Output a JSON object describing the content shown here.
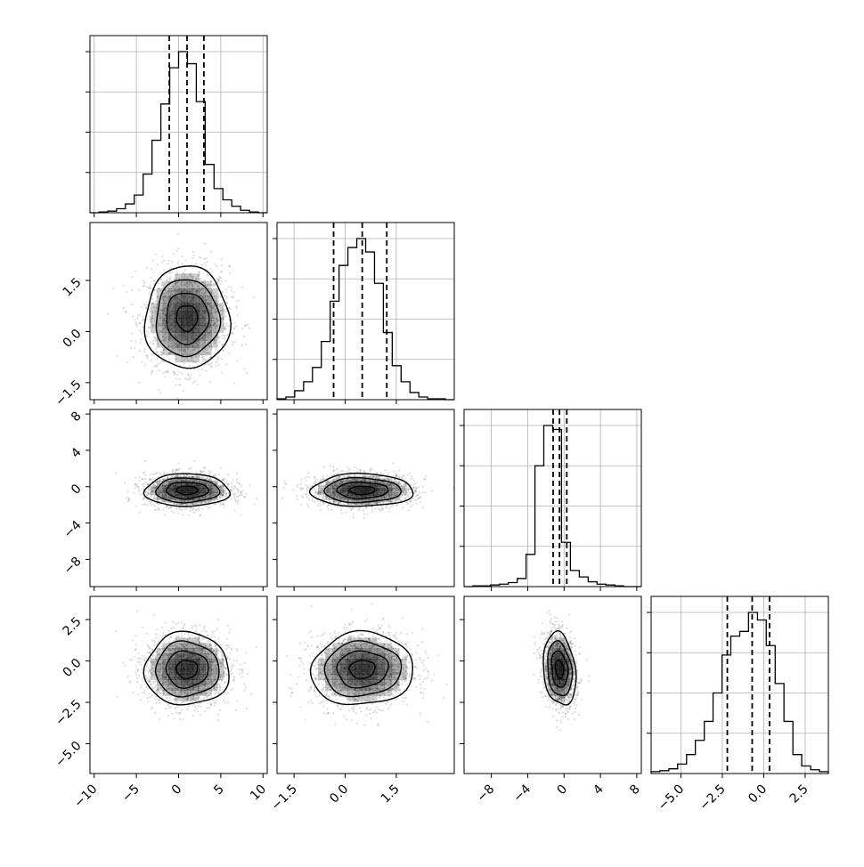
{
  "chart_data": {
    "type": "corner",
    "title": "",
    "variables": [
      {
        "ticks": [
          -10,
          -5,
          0,
          5,
          10
        ],
        "tick_labels": [
          "−10",
          "−5",
          "0",
          "5",
          "10"
        ],
        "range": [
          -10.5,
          10.5
        ]
      },
      {
        "ticks": [
          -1.5,
          0.0,
          1.5
        ],
        "tick_labels": [
          "−1.5",
          "0.0",
          "1.5"
        ],
        "range": [
          -2.0,
          3.2
        ]
      },
      {
        "ticks": [
          -8,
          -4,
          0,
          4,
          8
        ],
        "tick_labels": [
          "−8",
          "−4",
          "0",
          "4",
          "8"
        ],
        "range": [
          -11.0,
          8.5
        ]
      },
      {
        "ticks": [
          -5.0,
          -2.5,
          0.0,
          2.5
        ],
        "tick_labels": [
          "−5.0",
          "−2.5",
          "0.0",
          "2.5"
        ],
        "range": [
          -6.8,
          3.9
        ]
      }
    ],
    "histograms": [
      {
        "edges": [
          -10.5,
          -9.45,
          -8.4,
          -7.35,
          -6.3,
          -5.25,
          -4.2,
          -3.15,
          -2.1,
          -1.05,
          0,
          1.05,
          2.1,
          3.15,
          4.2,
          5.25,
          6.3,
          7.35,
          8.4,
          9.45,
          10.5
        ],
        "counts": [
          0,
          1,
          2,
          5,
          11,
          22,
          48,
          90,
          135,
          180,
          200,
          185,
          138,
          60,
          30,
          16,
          8,
          3,
          1,
          0
        ],
        "quantiles": [
          -1.1,
          1.0,
          3.0
        ]
      },
      {
        "edges": [
          -2.0,
          -1.74,
          -1.48,
          -1.22,
          -0.96,
          -0.7,
          -0.44,
          -0.18,
          0.08,
          0.34,
          0.6,
          0.86,
          1.12,
          1.38,
          1.64,
          1.9,
          2.16,
          2.42,
          2.68,
          2.94,
          3.2
        ],
        "counts": [
          1,
          3,
          10,
          20,
          36,
          65,
          110,
          150,
          170,
          180,
          165,
          130,
          75,
          38,
          20,
          8,
          3,
          1,
          1,
          0
        ],
        "quantiles": [
          -0.34,
          0.5,
          1.22
        ]
      },
      {
        "edges": [
          -11.0,
          -10.03,
          -9.05,
          -8.08,
          -7.1,
          -6.13,
          -5.15,
          -4.18,
          -3.2,
          -2.23,
          -1.25,
          -0.28,
          0.7,
          1.68,
          2.65,
          3.63,
          4.6,
          5.58,
          6.55,
          7.53,
          8.5
        ],
        "counts": [
          0,
          1,
          1,
          2,
          3,
          5,
          10,
          40,
          150,
          200,
          195,
          55,
          20,
          12,
          6,
          3,
          2,
          1,
          0,
          0
        ],
        "quantiles": [
          -1.2,
          -0.5,
          0.3
        ]
      },
      {
        "edges": [
          -6.8,
          -6.27,
          -5.73,
          -5.2,
          -4.66,
          -4.13,
          -3.59,
          -3.06,
          -2.52,
          -1.99,
          -1.45,
          -0.92,
          -0.38,
          0.15,
          0.69,
          1.22,
          1.76,
          2.29,
          2.83,
          3.36,
          3.9
        ],
        "counts": [
          2,
          3,
          5,
          10,
          20,
          35,
          55,
          85,
          125,
          145,
          150,
          170,
          162,
          135,
          95,
          55,
          20,
          8,
          4,
          2
        ],
        "quantiles": [
          -2.2,
          -0.7,
          0.35
        ]
      }
    ],
    "pairs": [
      {
        "row": 1,
        "col": 0,
        "mean": [
          1.0,
          0.4
        ],
        "sd": [
          2.5,
          0.75
        ],
        "corr": 0.0
      },
      {
        "row": 2,
        "col": 0,
        "mean": [
          1.0,
          -0.4
        ],
        "sd": [
          2.5,
          0.9
        ],
        "corr": 0.0
      },
      {
        "row": 2,
        "col": 1,
        "mean": [
          0.5,
          -0.4
        ],
        "sd": [
          0.75,
          0.9
        ],
        "corr": 0.0
      },
      {
        "row": 3,
        "col": 0,
        "mean": [
          1.0,
          -0.5
        ],
        "sd": [
          2.5,
          1.1
        ],
        "corr": 0.0
      },
      {
        "row": 3,
        "col": 1,
        "mean": [
          0.5,
          -0.5
        ],
        "sd": [
          0.75,
          1.1
        ],
        "corr": 0.05
      },
      {
        "row": 3,
        "col": 2,
        "mean": [
          -0.5,
          -0.5
        ],
        "sd": [
          0.9,
          1.1
        ],
        "corr": -0.2
      }
    ],
    "contour_levels": [
      "0.5",
      "1.0",
      "1.5",
      "2.0"
    ],
    "grid": true,
    "legend": "none",
    "colors": {
      "line": "#000000",
      "grid": "#b0b0b0",
      "scatter": "#666666",
      "density": "#000000"
    }
  }
}
